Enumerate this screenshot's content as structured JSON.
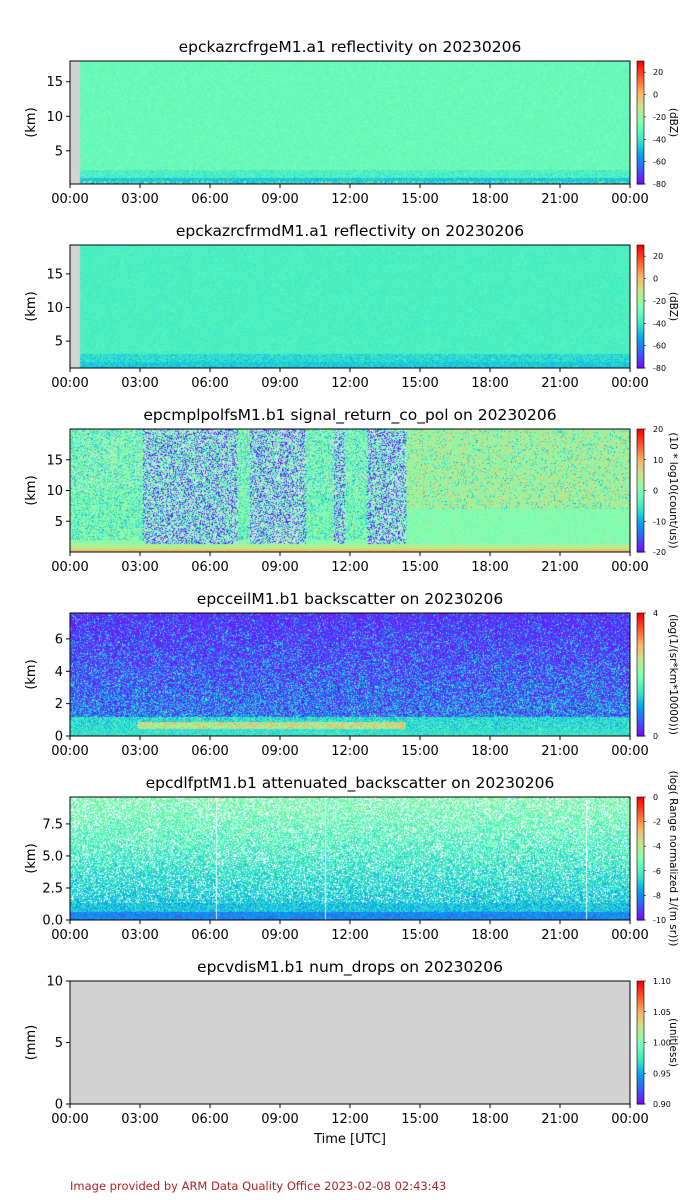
{
  "colormap": [
    "#7f00ff",
    "#3d59f8",
    "#00a8ec",
    "#40ebc4",
    "#7fffb4",
    "#c0eb8c",
    "#ffb360",
    "#ff5a2c",
    "#ff0000"
  ],
  "colors": {
    "missing": "#d3d3d3",
    "axis": "#000000",
    "footer": "#b22222"
  },
  "figure": {
    "xlabel": "Time [UTC]",
    "footer": "Image provided by ARM Data Quality Office 2023-02-08 02:43:43"
  },
  "chart_data": [
    {
      "type": "heatmap",
      "title": "epckazrcfrgeM1.a1 reflectivity on 20230206",
      "ylabel": "(km)",
      "xlim": [
        "00:00",
        "24:00"
      ],
      "x_ticks": [
        "00:00",
        "03:00",
        "06:00",
        "09:00",
        "12:00",
        "15:00",
        "18:00",
        "21:00",
        "00:00"
      ],
      "ylim": [
        0.2,
        18
      ],
      "y_ticks": [
        5,
        10,
        15
      ],
      "colorbar": {
        "label": "(dBZ)",
        "range": [
          -80,
          30
        ],
        "ticks": [
          20,
          0,
          -20,
          -40,
          -60,
          -80
        ]
      },
      "missing_data_until_hour": 0.4,
      "pattern": "reflectivity_fine"
    },
    {
      "type": "heatmap",
      "title": "epckazrcfrmdM1.a1 reflectivity on 20230206",
      "ylabel": "(km)",
      "xlim": [
        "00:00",
        "24:00"
      ],
      "x_ticks": [
        "00:00",
        "03:00",
        "06:00",
        "09:00",
        "12:00",
        "15:00",
        "18:00",
        "21:00",
        "00:00"
      ],
      "ylim": [
        1,
        19.3
      ],
      "y_ticks": [
        5,
        10,
        15
      ],
      "colorbar": {
        "label": "(dBZ)",
        "range": [
          -80,
          30
        ],
        "ticks": [
          20,
          0,
          -20,
          -40,
          -60,
          -80
        ]
      },
      "missing_data_until_hour": 0.4,
      "pattern": "reflectivity_coarse"
    },
    {
      "type": "heatmap",
      "title": "epcmplpolfsM1.b1 signal_return_co_pol on 20230206",
      "ylabel": "(km)",
      "xlim": [
        "00:00",
        "24:00"
      ],
      "x_ticks": [
        "00:00",
        "03:00",
        "06:00",
        "09:00",
        "12:00",
        "15:00",
        "18:00",
        "21:00",
        "00:00"
      ],
      "ylim": [
        0,
        20
      ],
      "y_ticks": [
        5,
        10,
        15
      ],
      "colorbar": {
        "label": "(10 * log10(count/us))",
        "range": [
          -20,
          20
        ],
        "ticks": [
          20,
          10,
          0,
          -10,
          -20
        ]
      },
      "pattern": "mpl"
    },
    {
      "type": "heatmap",
      "title": "epcceilM1.b1 backscatter on 20230206",
      "ylabel": "(km)",
      "xlim": [
        "00:00",
        "24:00"
      ],
      "x_ticks": [
        "00:00",
        "03:00",
        "06:00",
        "09:00",
        "12:00",
        "15:00",
        "18:00",
        "21:00",
        "00:00"
      ],
      "ylim": [
        0,
        7.6
      ],
      "y_ticks": [
        0,
        2,
        4,
        6
      ],
      "colorbar": {
        "label": "(log(1/(sr*km*10000)))",
        "range": [
          0,
          4
        ],
        "ticks": [
          4,
          0
        ]
      },
      "pattern": "ceil"
    },
    {
      "type": "heatmap",
      "title": "epcdlfptM1.b1 attenuated_backscatter on 20230206",
      "ylabel": "(km)",
      "xlim": [
        "00:00",
        "24:00"
      ],
      "x_ticks": [
        "00:00",
        "03:00",
        "06:00",
        "09:00",
        "12:00",
        "15:00",
        "18:00",
        "21:00",
        "00:00"
      ],
      "ylim": [
        0,
        9.6
      ],
      "y_ticks": [
        0.0,
        2.5,
        5.0,
        7.5
      ],
      "y_tick_labels": [
        "0.0",
        "2.5",
        "5.0",
        "7.5"
      ],
      "colorbar": {
        "label": "(log( Range normalized 1/(m sr)))",
        "range": [
          -10,
          0
        ],
        "ticks": [
          0,
          -2,
          -4,
          -6,
          -8,
          -10
        ]
      },
      "pattern": "doppler"
    },
    {
      "type": "heatmap",
      "title": "epcvdisM1.b1 num_drops on 20230206",
      "ylabel": "(mm)",
      "xlim": [
        "00:00",
        "24:00"
      ],
      "x_ticks": [
        "00:00",
        "03:00",
        "06:00",
        "09:00",
        "12:00",
        "15:00",
        "18:00",
        "21:00",
        "00:00"
      ],
      "ylim": [
        0,
        10
      ],
      "y_ticks": [
        0,
        5,
        10
      ],
      "colorbar": {
        "label": "(unitless)",
        "range": [
          0.9,
          1.1
        ],
        "ticks": [
          "1.10",
          "1.05",
          "1.00",
          "0.95",
          "0.90"
        ]
      },
      "pattern": "empty"
    }
  ]
}
